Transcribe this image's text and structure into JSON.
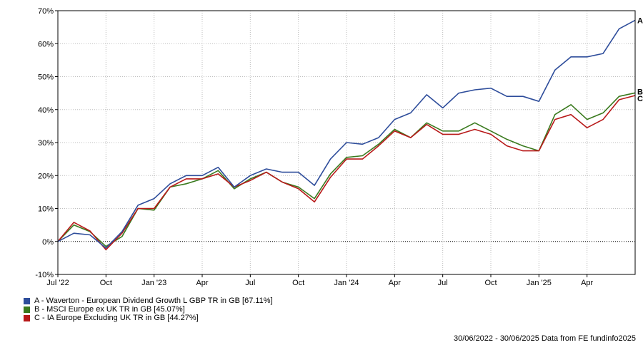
{
  "chart_data": {
    "type": "line",
    "title": "",
    "xlabel": "",
    "ylabel": "",
    "ylim": [
      -10,
      70
    ],
    "y_ticks": [
      -10,
      0,
      10,
      20,
      30,
      40,
      50,
      60,
      70
    ],
    "y_tick_suffix": "%",
    "grid": true,
    "zero_line": "dotted",
    "x_ticks": [
      {
        "label": "Jul '22",
        "index": 0
      },
      {
        "label": "Oct",
        "index": 3
      },
      {
        "label": "Jan '23",
        "index": 6
      },
      {
        "label": "Apr",
        "index": 9
      },
      {
        "label": "Jul",
        "index": 12
      },
      {
        "label": "Oct",
        "index": 15
      },
      {
        "label": "Jan '24",
        "index": 18
      },
      {
        "label": "Apr",
        "index": 21
      },
      {
        "label": "Jul",
        "index": 24
      },
      {
        "label": "Oct",
        "index": 27
      },
      {
        "label": "Jan '25",
        "index": 30
      },
      {
        "label": "Apr",
        "index": 33
      }
    ],
    "x_count": 37,
    "x": [
      "2022-06-30",
      "2022-07-31",
      "2022-08-31",
      "2022-09-30",
      "2022-10-31",
      "2022-11-30",
      "2022-12-31",
      "2023-01-31",
      "2023-02-28",
      "2023-03-31",
      "2023-04-30",
      "2023-05-31",
      "2023-06-30",
      "2023-07-31",
      "2023-08-31",
      "2023-09-30",
      "2023-10-31",
      "2023-11-30",
      "2023-12-31",
      "2024-01-31",
      "2024-02-29",
      "2024-03-31",
      "2024-04-30",
      "2024-05-31",
      "2024-06-30",
      "2024-07-31",
      "2024-08-31",
      "2024-09-30",
      "2024-10-31",
      "2024-11-30",
      "2024-12-31",
      "2025-01-31",
      "2025-02-28",
      "2025-03-31",
      "2025-04-30",
      "2025-05-31",
      "2025-06-30"
    ],
    "series": [
      {
        "id": "A",
        "name": "A - Waverton - European Dividend Growth L GBP TR in GB [67.11%]",
        "color": "#2e4d9b",
        "values": [
          0,
          2.5,
          2.0,
          -2.0,
          3.0,
          11.0,
          13.0,
          17.5,
          20.0,
          20.0,
          22.5,
          16.5,
          20.0,
          22.0,
          21.0,
          21.0,
          17.0,
          25.0,
          30.0,
          29.5,
          31.5,
          37.0,
          39.0,
          44.5,
          40.5,
          45.0,
          46.0,
          46.5,
          44.0,
          44.0,
          42.5,
          52.0,
          56.0,
          56.0,
          57.0,
          64.5,
          67.11
        ]
      },
      {
        "id": "B",
        "name": "B - MSCI Europe ex UK TR in GB [45.07%]",
        "color": "#3a7a1e",
        "values": [
          0,
          5.0,
          3.0,
          -1.5,
          1.5,
          10.0,
          9.5,
          16.5,
          17.5,
          19.0,
          21.5,
          16.0,
          19.0,
          21.0,
          18.0,
          16.5,
          13.0,
          20.5,
          25.5,
          26.0,
          29.5,
          34.0,
          31.5,
          36.0,
          33.5,
          33.5,
          36.0,
          33.5,
          31.0,
          29.0,
          27.5,
          38.5,
          41.5,
          37.0,
          39.0,
          44.0,
          45.07
        ]
      },
      {
        "id": "C",
        "name": "C - IA Europe Excluding UK TR in GB [44.27%]",
        "color": "#b81919",
        "values": [
          0,
          5.8,
          3.2,
          -2.5,
          2.5,
          10.0,
          10.0,
          16.5,
          19.0,
          19.0,
          20.5,
          16.5,
          18.5,
          21.0,
          18.0,
          16.0,
          12.0,
          19.5,
          25.0,
          25.0,
          29.0,
          33.5,
          31.5,
          35.5,
          32.5,
          32.5,
          34.0,
          32.5,
          29.0,
          27.5,
          27.5,
          37.0,
          38.5,
          34.5,
          37.0,
          43.0,
          44.27
        ]
      }
    ],
    "legend_position": "bottom-left"
  },
  "footer": {
    "text": "30/06/2022 - 30/06/2025 Data from FE fundinfo2025"
  }
}
